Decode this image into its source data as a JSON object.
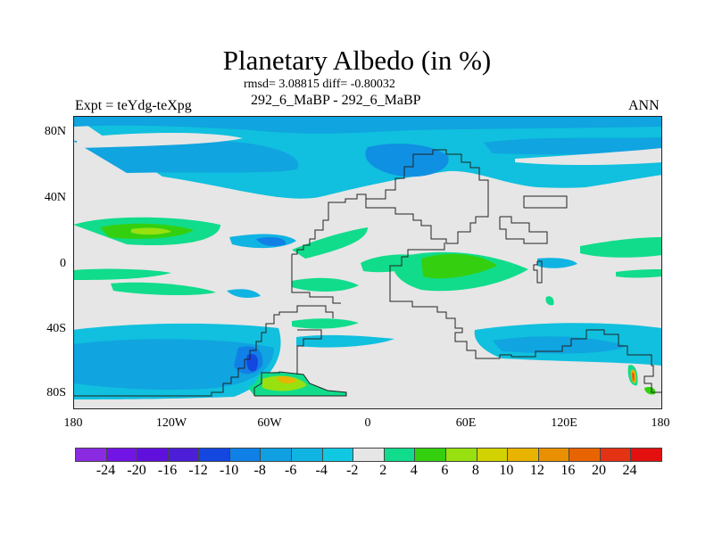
{
  "title": "Planetary Albedo (in %)",
  "stats": "rmsd= 3.08815 diff= -0.80032",
  "cases": "292_6_MaBP - 292_6_MaBP",
  "expt": "Expt = teYdg-teXpg",
  "season": "ANN",
  "chart_data": {
    "type": "heatmap",
    "title": "Planetary Albedo (in %)",
    "lat_ticks": [
      "80N",
      "40N",
      "0",
      "40S",
      "80S"
    ],
    "lat_values": [
      80,
      40,
      0,
      -40,
      -80
    ],
    "lon_ticks": [
      "180",
      "120W",
      "60W",
      "0",
      "60E",
      "120E",
      "180"
    ],
    "lon_values": [
      -180,
      -120,
      -60,
      0,
      60,
      120,
      180
    ],
    "lat_range": [
      -90,
      90
    ],
    "lon_range": [
      -180,
      180
    ],
    "colorbar": {
      "levels": [
        "-24",
        "-20",
        "-16",
        "-12",
        "-10",
        "-8",
        "-6",
        "-4",
        "-2",
        "2",
        "4",
        "6",
        "8",
        "10",
        "12",
        "16",
        "20",
        "24"
      ],
      "colors": [
        "#8a2be2",
        "#7314e6",
        "#6010dc",
        "#4c1ed8",
        "#1446e0",
        "#1080e6",
        "#10a0e2",
        "#10b4e2",
        "#10c8e2",
        "#e6e6e6",
        "#10dc8c",
        "#34d010",
        "#98e010",
        "#d2d200",
        "#e8b400",
        "#e89000",
        "#e86400",
        "#e43214",
        "#e41010"
      ]
    }
  }
}
